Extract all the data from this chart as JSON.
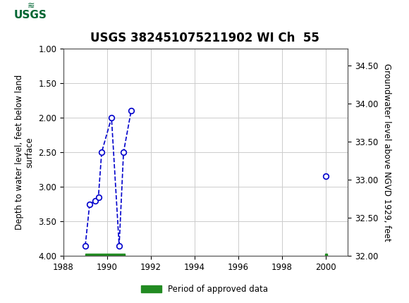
{
  "title": "USGS 382451075211902 WI Ch  55",
  "header_bg": "#006633",
  "plot_bg": "#ffffff",
  "grid_color": "#cccccc",
  "left_ylabel": "Depth to water level, feet below land\nsurface",
  "right_ylabel": "Groundwater level above NGVD 1929, feet",
  "xlim": [
    1988,
    2001
  ],
  "ylim_left": [
    4.0,
    1.0
  ],
  "ylim_right": [
    32.0,
    34.72
  ],
  "xticks": [
    1988,
    1990,
    1992,
    1994,
    1996,
    1998,
    2000
  ],
  "yticks_left": [
    1.0,
    1.5,
    2.0,
    2.5,
    3.0,
    3.5,
    4.0
  ],
  "yticks_right": [
    32.0,
    32.5,
    33.0,
    33.5,
    34.0,
    34.5
  ],
  "segment1_x": [
    1989.0,
    1989.2,
    1989.45,
    1989.6,
    1989.75,
    1990.2,
    1990.55,
    1990.75,
    1991.1
  ],
  "segment1_y": [
    3.85,
    3.25,
    3.2,
    3.15,
    2.5,
    2.0,
    3.85,
    2.5,
    1.9
  ],
  "isolated_x": [
    2000.0
  ],
  "isolated_y": [
    2.85
  ],
  "line_color": "#0000cc",
  "marker_color": "#0000cc",
  "marker_face": "white",
  "bar_periods": [
    {
      "x_start": 1989.0,
      "x_end": 1990.8,
      "y_bot": 3.965,
      "y_top": 4.0
    },
    {
      "x_start": 1999.97,
      "x_end": 2000.08,
      "y_bot": 3.965,
      "y_top": 4.0
    }
  ],
  "bar_color": "#228B22",
  "legend_label": "Period of approved data",
  "tick_fontsize": 8.5,
  "label_fontsize": 8.5,
  "title_fontsize": 12
}
